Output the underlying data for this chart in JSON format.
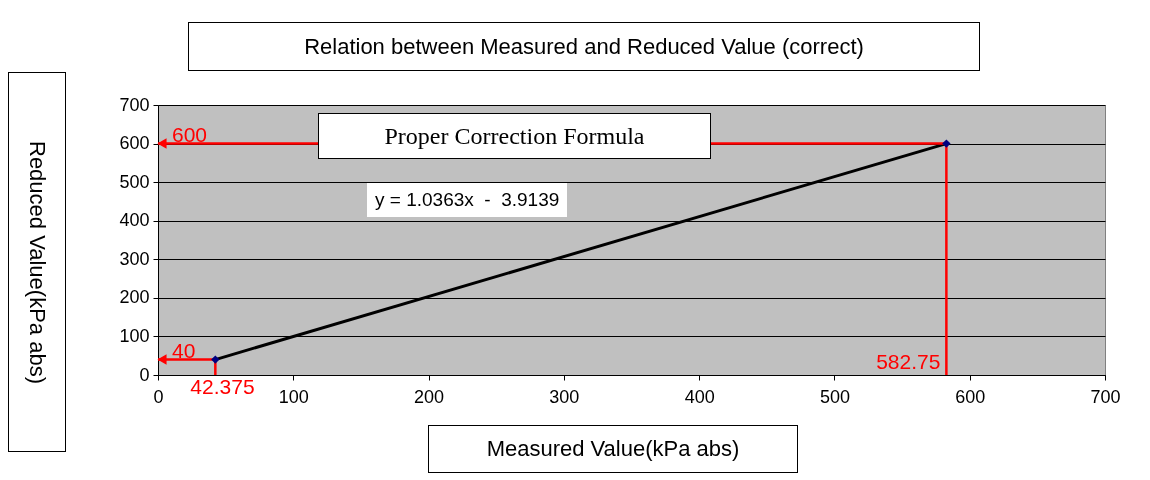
{
  "chart_data": {
    "type": "scatter",
    "title": "Relation between Measured and Reduced Value (correct)",
    "xlabel": "Measured Value(kPa abs)",
    "ylabel": "Reduced Value(kPa abs)",
    "annotations": [
      "Proper Correction Formula",
      "y = 1.0363x  -  3.9139"
    ],
    "x": [
      42.375,
      582.75
    ],
    "series": [
      {
        "type": "line",
        "color": "#000000",
        "marker": "none",
        "x": [
          42.375,
          582.75
        ],
        "values": [
          40,
          600
        ]
      },
      {
        "color": "#000080",
        "values": [
          40,
          600
        ]
      }
    ],
    "marker": "diamond",
    "xlim": [
      0,
      700
    ],
    "ylim": [
      0,
      700
    ],
    "xticks": [
      0,
      100,
      200,
      300,
      400,
      500,
      600,
      700
    ],
    "yticks": [
      0,
      100,
      200,
      300,
      400,
      500,
      600,
      700
    ],
    "grid": "y",
    "ref_lines": [
      {
        "axis": "y",
        "value": 600,
        "label": "600",
        "color": "#ff0000"
      },
      {
        "axis": "y",
        "value": 40,
        "label": "40",
        "color": "#ff0000"
      },
      {
        "axis": "x",
        "value": 42.375,
        "label": "42.375",
        "color": "#ff0000"
      },
      {
        "axis": "x",
        "value": 582.75,
        "label": "582.75",
        "color": "#ff0000"
      }
    ]
  }
}
